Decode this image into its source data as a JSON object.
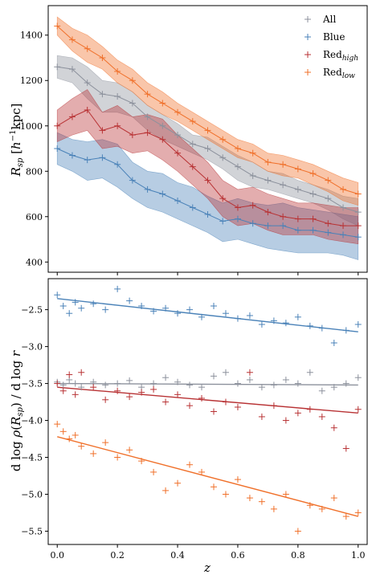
{
  "chart_data": [
    {
      "type": "line",
      "panel": "top",
      "xlabel": "",
      "ylabel": "R_sp [h^-1 kpc]",
      "xlim": [
        -0.03,
        1.03
      ],
      "ylim": [
        355,
        1530
      ],
      "yticks": [
        400,
        600,
        800,
        1000,
        1200,
        1400
      ],
      "ytick_labels": [
        "400",
        "600",
        "800",
        "1000",
        "1200",
        "1400"
      ],
      "xticks": [
        0.0,
        0.2,
        0.4,
        0.6,
        0.8,
        1.0
      ],
      "legend": "top-right",
      "legend_entries": [
        "All",
        "Blue",
        "Red",
        "Red"
      ],
      "legend_subscripts": [
        "",
        "",
        "high",
        "low"
      ],
      "colors": {
        "All": "#8c919c",
        "Blue": "#4a82b8",
        "Red_high": "#b83234",
        "Red_low": "#f0702a"
      },
      "series": [
        {
          "name": "All",
          "color": "#8c919c",
          "x": [
            0.0,
            0.05,
            0.1,
            0.15,
            0.2,
            0.25,
            0.3,
            0.35,
            0.4,
            0.45,
            0.5,
            0.55,
            0.6,
            0.65,
            0.7,
            0.75,
            0.8,
            0.85,
            0.9,
            0.95,
            1.0
          ],
          "y": [
            1260,
            1250,
            1190,
            1140,
            1130,
            1100,
            1040,
            1000,
            960,
            920,
            900,
            860,
            820,
            780,
            760,
            740,
            720,
            700,
            680,
            640,
            620
          ],
          "band_low": [
            1210,
            1190,
            1120,
            1060,
            1060,
            1040,
            980,
            940,
            910,
            880,
            850,
            810,
            760,
            730,
            720,
            700,
            680,
            660,
            630,
            590,
            560
          ],
          "band_high": [
            1310,
            1300,
            1260,
            1200,
            1190,
            1150,
            1090,
            1050,
            1010,
            960,
            950,
            910,
            870,
            840,
            800,
            790,
            760,
            740,
            720,
            690,
            680
          ]
        },
        {
          "name": "Blue",
          "color": "#4a82b8",
          "x": [
            0.0,
            0.05,
            0.1,
            0.15,
            0.2,
            0.25,
            0.3,
            0.35,
            0.4,
            0.45,
            0.5,
            0.55,
            0.6,
            0.65,
            0.7,
            0.75,
            0.8,
            0.85,
            0.9,
            0.95,
            1.0
          ],
          "y": [
            900,
            870,
            850,
            860,
            830,
            760,
            720,
            700,
            670,
            640,
            610,
            580,
            590,
            570,
            560,
            560,
            540,
            540,
            530,
            520,
            510
          ],
          "band_low": [
            830,
            800,
            760,
            770,
            730,
            680,
            640,
            620,
            590,
            560,
            530,
            490,
            500,
            480,
            460,
            450,
            440,
            440,
            440,
            430,
            410
          ],
          "band_high": [
            970,
            940,
            930,
            940,
            920,
            840,
            800,
            790,
            750,
            730,
            690,
            660,
            680,
            660,
            650,
            660,
            640,
            630,
            620,
            610,
            600
          ]
        },
        {
          "name": "Red_high",
          "color": "#b83234",
          "x": [
            0.0,
            0.05,
            0.1,
            0.15,
            0.2,
            0.25,
            0.3,
            0.35,
            0.4,
            0.45,
            0.5,
            0.55,
            0.6,
            0.65,
            0.7,
            0.75,
            0.8,
            0.85,
            0.9,
            0.95,
            1.0
          ],
          "y": [
            1000,
            1040,
            1070,
            980,
            1000,
            960,
            970,
            940,
            880,
            820,
            760,
            680,
            640,
            650,
            620,
            600,
            590,
            590,
            570,
            560,
            560
          ],
          "band_low": [
            930,
            960,
            980,
            900,
            910,
            880,
            890,
            850,
            800,
            740,
            680,
            600,
            560,
            570,
            540,
            520,
            520,
            520,
            500,
            490,
            480
          ],
          "band_high": [
            1070,
            1120,
            1160,
            1060,
            1090,
            1040,
            1050,
            1030,
            960,
            900,
            840,
            760,
            720,
            730,
            700,
            680,
            660,
            660,
            650,
            640,
            640
          ]
        },
        {
          "name": "Red_low",
          "color": "#f0702a",
          "x": [
            0.0,
            0.05,
            0.1,
            0.15,
            0.2,
            0.25,
            0.3,
            0.35,
            0.4,
            0.45,
            0.5,
            0.55,
            0.6,
            0.65,
            0.7,
            0.75,
            0.8,
            0.85,
            0.9,
            0.95,
            1.0
          ],
          "y": [
            1440,
            1380,
            1340,
            1300,
            1240,
            1200,
            1140,
            1100,
            1060,
            1020,
            980,
            940,
            900,
            880,
            840,
            830,
            810,
            790,
            760,
            720,
            700
          ],
          "band_low": [
            1400,
            1330,
            1280,
            1250,
            1190,
            1150,
            1090,
            1050,
            1020,
            980,
            940,
            900,
            860,
            840,
            800,
            780,
            770,
            740,
            710,
            670,
            650
          ],
          "band_high": [
            1480,
            1430,
            1400,
            1350,
            1290,
            1250,
            1190,
            1150,
            1100,
            1060,
            1020,
            980,
            940,
            920,
            880,
            870,
            850,
            830,
            800,
            770,
            750
          ]
        }
      ]
    },
    {
      "type": "scatter",
      "panel": "bottom",
      "xlabel": "z",
      "ylabel": "dlog ρ(R_sp) / dlog r",
      "xlim": [
        -0.03,
        1.03
      ],
      "ylim": [
        -5.68,
        -2.08
      ],
      "yticks": [
        -2.5,
        -3.0,
        -3.5,
        -4.0,
        -4.5,
        -5.0,
        -5.5
      ],
      "ytick_labels": [
        "−2.5",
        "−3.0",
        "−3.5",
        "−4.0",
        "−4.5",
        "−5.0",
        "−5.5"
      ],
      "xticks": [
        0.0,
        0.2,
        0.4,
        0.6,
        0.8,
        1.0
      ],
      "xtick_labels": [
        "0.0",
        "0.2",
        "0.4",
        "0.6",
        "0.8",
        "1.0"
      ],
      "series": [
        {
          "name": "All",
          "color": "#8c919c",
          "fit": [
            [
              0.0,
              -3.5
            ],
            [
              1.0,
              -3.52
            ]
          ],
          "x": [
            0.0,
            0.02,
            0.04,
            0.06,
            0.08,
            0.12,
            0.16,
            0.2,
            0.24,
            0.28,
            0.32,
            0.36,
            0.4,
            0.44,
            0.48,
            0.52,
            0.56,
            0.6,
            0.64,
            0.68,
            0.72,
            0.76,
            0.8,
            0.84,
            0.88,
            0.92,
            0.96,
            1.0
          ],
          "y": [
            -3.48,
            -3.52,
            -3.45,
            -3.5,
            -3.55,
            -3.48,
            -3.52,
            -3.5,
            -3.46,
            -3.55,
            -3.5,
            -3.42,
            -3.48,
            -3.52,
            -3.55,
            -3.4,
            -3.35,
            -3.5,
            -3.45,
            -3.55,
            -3.52,
            -3.45,
            -3.5,
            -3.35,
            -3.6,
            -3.55,
            -3.5,
            -3.42
          ]
        },
        {
          "name": "Blue",
          "color": "#4a82b8",
          "fit": [
            [
              0.0,
              -2.35
            ],
            [
              1.0,
              -2.8
            ]
          ],
          "x": [
            0.0,
            0.02,
            0.04,
            0.06,
            0.08,
            0.12,
            0.16,
            0.2,
            0.24,
            0.28,
            0.32,
            0.36,
            0.4,
            0.44,
            0.48,
            0.52,
            0.56,
            0.6,
            0.64,
            0.68,
            0.72,
            0.76,
            0.8,
            0.84,
            0.88,
            0.92,
            0.96,
            1.0
          ],
          "y": [
            -2.3,
            -2.45,
            -2.55,
            -2.4,
            -2.48,
            -2.42,
            -2.5,
            -2.22,
            -2.38,
            -2.45,
            -2.52,
            -2.48,
            -2.55,
            -2.5,
            -2.6,
            -2.45,
            -2.55,
            -2.62,
            -2.58,
            -2.7,
            -2.65,
            -2.68,
            -2.6,
            -2.72,
            -2.75,
            -2.95,
            -2.78,
            -2.7
          ]
        },
        {
          "name": "Red_high",
          "color": "#b83234",
          "fit": [
            [
              0.0,
              -3.55
            ],
            [
              1.0,
              -3.9
            ]
          ],
          "x": [
            0.0,
            0.02,
            0.04,
            0.06,
            0.08,
            0.12,
            0.16,
            0.2,
            0.24,
            0.28,
            0.32,
            0.36,
            0.4,
            0.44,
            0.48,
            0.52,
            0.56,
            0.6,
            0.64,
            0.68,
            0.72,
            0.76,
            0.8,
            0.84,
            0.88,
            0.92,
            0.96,
            1.0
          ],
          "y": [
            -3.5,
            -3.6,
            -3.38,
            -3.65,
            -3.35,
            -3.55,
            -3.72,
            -3.6,
            -3.68,
            -3.62,
            -3.58,
            -3.75,
            -3.65,
            -3.8,
            -3.7,
            -3.88,
            -3.75,
            -3.82,
            -3.35,
            -3.95,
            -3.8,
            -4.0,
            -3.9,
            -3.85,
            -3.95,
            -4.1,
            -4.38,
            -3.85
          ]
        },
        {
          "name": "Red_low",
          "color": "#f0702a",
          "fit": [
            [
              0.0,
              -4.22
            ],
            [
              1.0,
              -5.3
            ]
          ],
          "x": [
            0.0,
            0.02,
            0.04,
            0.06,
            0.08,
            0.12,
            0.16,
            0.2,
            0.24,
            0.28,
            0.32,
            0.36,
            0.4,
            0.44,
            0.48,
            0.52,
            0.56,
            0.6,
            0.64,
            0.68,
            0.72,
            0.76,
            0.8,
            0.84,
            0.88,
            0.92,
            0.96,
            1.0
          ],
          "y": [
            -4.05,
            -4.15,
            -4.25,
            -4.2,
            -4.35,
            -4.45,
            -4.3,
            -4.5,
            -4.4,
            -4.55,
            -4.7,
            -4.95,
            -4.85,
            -4.6,
            -4.7,
            -4.9,
            -5.0,
            -4.8,
            -5.05,
            -5.1,
            -5.2,
            -5.0,
            -5.5,
            -5.15,
            -5.2,
            -5.05,
            -5.3,
            -5.25
          ]
        }
      ]
    }
  ]
}
